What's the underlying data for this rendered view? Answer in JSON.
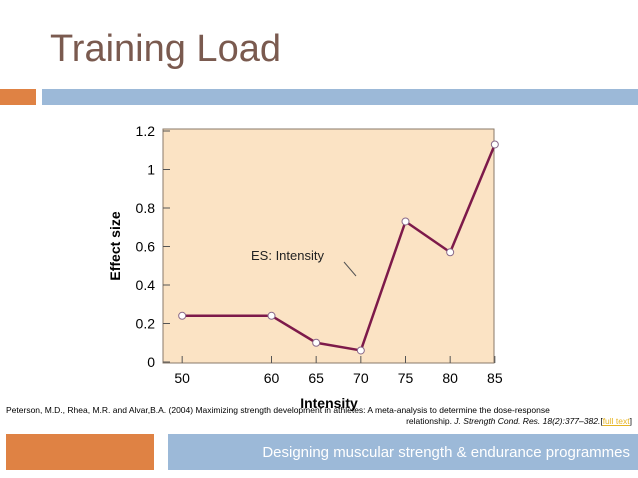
{
  "slide": {
    "title": "Training Load",
    "footer": "Designing muscular strength & endurance programmes"
  },
  "citation": {
    "line1": "Peterson, M.D., Rhea, M.R. and Alvar,B.A. (2004) Maximizing strength development in athletes: A meta-analysis to determine the dose-response",
    "line2_plain": "relationship. ",
    "journal": "J. Strength Cond. Res. 18(2):377–382.",
    "bracket_open": "[",
    "link_text": "full text",
    "bracket_close": "]"
  },
  "colors": {
    "title": "#7a5a4f",
    "accent_orange": "#df8244",
    "accent_blue": "#9cb9d8",
    "plot_bg": "#fbe3c4",
    "line": "#7d1a4a",
    "link": "#e6b422"
  },
  "chart_data": {
    "type": "line",
    "xlabel": "Intensity",
    "ylabel": "Effect size",
    "x": [
      50,
      60,
      65,
      70,
      75,
      80,
      85
    ],
    "series": [
      {
        "name": "ES: Intensity",
        "values": [
          0.24,
          0.24,
          0.1,
          0.06,
          0.73,
          0.57,
          1.13
        ]
      }
    ],
    "ylim": [
      0,
      1.2
    ],
    "yticks": [
      "0",
      "0.2",
      "0.4",
      "0.6",
      "0.8",
      "1",
      "1.2"
    ],
    "xticks": [
      "50",
      "60",
      "65",
      "70",
      "75",
      "80",
      "85"
    ],
    "annotation": "ES: Intensity",
    "grid": false
  }
}
